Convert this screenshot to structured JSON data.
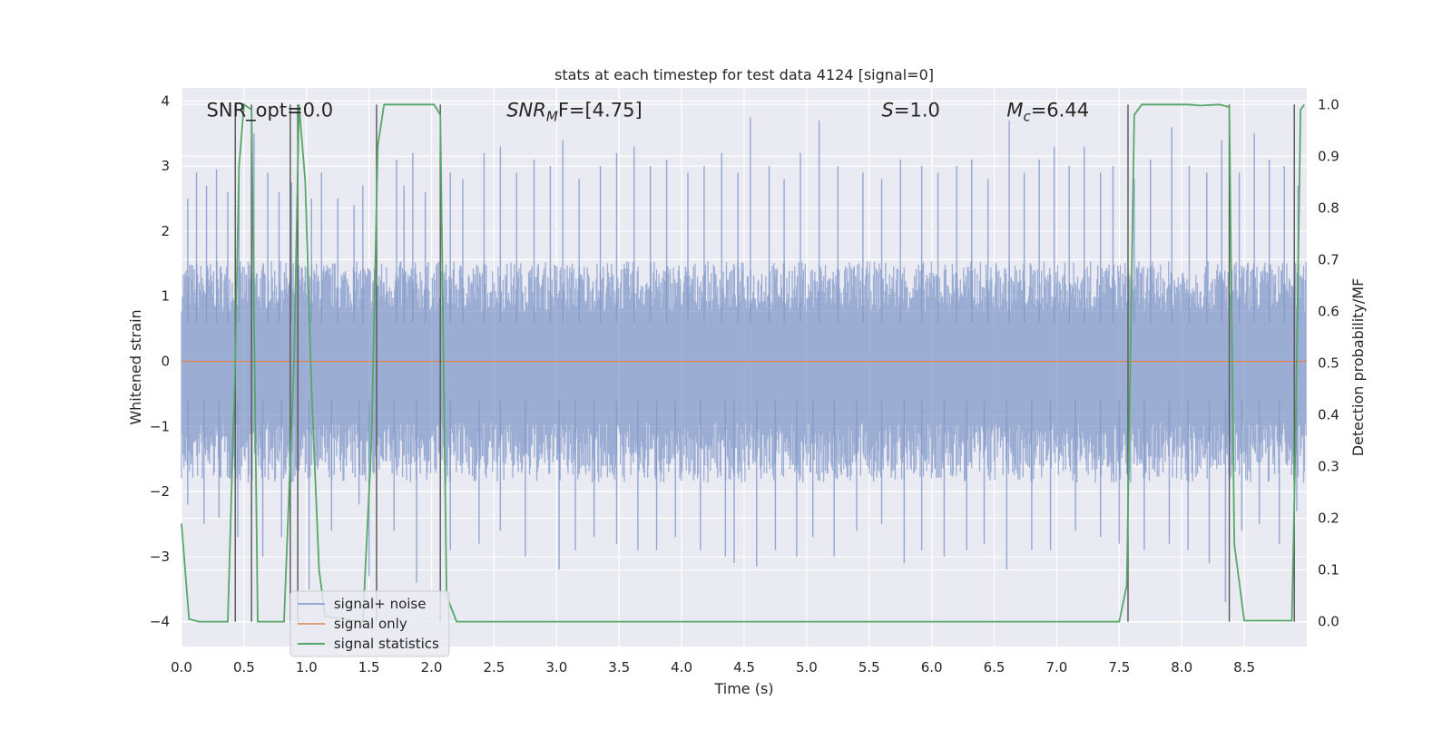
{
  "chart_data": {
    "type": "line",
    "title": "stats at each timestep for test data 4124 [signal=0]",
    "xlabel": "Time (s)",
    "ylabel_left": "Whitened strain",
    "ylabel_right": "Detection probability/MF",
    "xlim": [
      0.0,
      9.0
    ],
    "ylim_left": [
      -4.38,
      4.2
    ],
    "ylim_right": [
      -0.048,
      1.032
    ],
    "x_ticks": [
      0.0,
      0.5,
      1.0,
      1.5,
      2.0,
      2.5,
      3.0,
      3.5,
      4.0,
      4.5,
      5.0,
      5.5,
      6.0,
      6.5,
      7.0,
      7.5,
      8.0,
      8.5
    ],
    "x_tick_labels": [
      "0.0",
      "0.5",
      "1.0",
      "1.5",
      "2.0",
      "2.5",
      "3.0",
      "3.5",
      "4.0",
      "4.5",
      "5.0",
      "5.5",
      "6.0",
      "6.5",
      "7.0",
      "7.5",
      "8.0",
      "8.5"
    ],
    "y_left_ticks": [
      4,
      3,
      2,
      1,
      0,
      -1,
      -2,
      -3,
      -4
    ],
    "y_left_tick_labels": [
      "4",
      "3",
      "2",
      "1",
      "0",
      "−1",
      "−2",
      "−3",
      "−4"
    ],
    "y_right_ticks": [
      1.0,
      0.9,
      0.8,
      0.7,
      0.6,
      0.5,
      0.4,
      0.3,
      0.2,
      0.1,
      0.0
    ],
    "y_right_tick_labels": [
      "1.0",
      "0.9",
      "0.8",
      "0.7",
      "0.6",
      "0.5",
      "0.4",
      "0.3",
      "0.2",
      "0.1",
      "0.0"
    ],
    "grid": true,
    "legend_position": "lower-left",
    "colors": {
      "plot_bg": "#eaeaf2",
      "noise": "#7e96c8",
      "signal_only": "#dd8452",
      "statistics": "#55a868",
      "marker": "#555555",
      "grid": "#ffffff"
    },
    "annotations": [
      {
        "id": "snr-opt",
        "text": "SNR_opt=0.0",
        "main": "SNR_opt=0.0",
        "sub": "",
        "rest": "",
        "italic": false,
        "x": 0.2,
        "y": 3.8
      },
      {
        "id": "snr-mf",
        "text": "SNR_MF=[4.75]",
        "main": "SNR",
        "sub": "M",
        "rest": "F=[4.75]",
        "italic": true,
        "x": 2.6,
        "y": 3.8
      },
      {
        "id": "s-value",
        "text": "S=1.0",
        "main": "S",
        "sub": "",
        "rest": "=1.0",
        "italic": true,
        "x": 5.6,
        "y": 3.8
      },
      {
        "id": "mc-value",
        "text": "M_c=6.44",
        "main": "M",
        "sub": "c",
        "rest": "=6.44",
        "italic": true,
        "x": 6.6,
        "y": 3.8
      }
    ],
    "series": [
      {
        "name": "signal+ noise",
        "kind": "noise",
        "approx_envelope": {
          "typical_upper": 1.4,
          "typical_lower": -1.7,
          "peak_max": 3.75,
          "peak_min": -3.7
        },
        "spikes_up": [
          [
            0.05,
            2.5
          ],
          [
            0.12,
            2.9
          ],
          [
            0.2,
            2.7
          ],
          [
            0.28,
            2.95
          ],
          [
            0.37,
            2.6
          ],
          [
            0.46,
            2.8
          ],
          [
            0.58,
            3.5
          ],
          [
            0.69,
            2.9
          ],
          [
            0.78,
            2.6
          ],
          [
            0.88,
            2.75
          ],
          [
            1.04,
            2.5
          ],
          [
            1.12,
            2.9
          ],
          [
            1.25,
            2.5
          ],
          [
            1.38,
            2.4
          ],
          [
            1.45,
            2.7
          ],
          [
            1.72,
            3.1
          ],
          [
            1.78,
            2.7
          ],
          [
            1.85,
            3.2
          ],
          [
            1.95,
            2.6
          ],
          [
            2.15,
            2.9
          ],
          [
            2.25,
            2.8
          ],
          [
            2.42,
            3.2
          ],
          [
            2.55,
            3.3
          ],
          [
            2.68,
            2.9
          ],
          [
            2.82,
            3.1
          ],
          [
            2.95,
            3.0
          ],
          [
            3.05,
            3.4
          ],
          [
            3.18,
            2.8
          ],
          [
            3.35,
            3.0
          ],
          [
            3.48,
            3.2
          ],
          [
            3.62,
            3.3
          ],
          [
            3.75,
            3.0
          ],
          [
            3.88,
            3.1
          ],
          [
            4.05,
            2.9
          ],
          [
            4.18,
            3.0
          ],
          [
            4.32,
            3.2
          ],
          [
            4.45,
            2.9
          ],
          [
            4.55,
            3.75
          ],
          [
            4.7,
            3.0
          ],
          [
            4.82,
            2.8
          ],
          [
            4.95,
            3.2
          ],
          [
            5.1,
            3.7
          ],
          [
            5.25,
            3.0
          ],
          [
            5.45,
            2.9
          ],
          [
            5.6,
            2.8
          ],
          [
            5.75,
            3.1
          ],
          [
            5.92,
            3.0
          ],
          [
            6.05,
            2.9
          ],
          [
            6.2,
            3.0
          ],
          [
            6.32,
            3.1
          ],
          [
            6.45,
            2.8
          ],
          [
            6.62,
            3.7
          ],
          [
            6.74,
            2.9
          ],
          [
            6.86,
            3.1
          ],
          [
            6.98,
            3.3
          ],
          [
            7.1,
            3.0
          ],
          [
            7.22,
            3.3
          ],
          [
            7.35,
            2.9
          ],
          [
            7.45,
            3.0
          ],
          [
            7.62,
            2.8
          ],
          [
            7.75,
            3.1
          ],
          [
            7.92,
            3.6
          ],
          [
            8.06,
            3.0
          ],
          [
            8.2,
            2.9
          ],
          [
            8.32,
            3.4
          ],
          [
            8.46,
            2.9
          ],
          [
            8.58,
            3.5
          ],
          [
            8.7,
            3.1
          ],
          [
            8.82,
            3.0
          ],
          [
            8.93,
            2.7
          ]
        ],
        "spikes_down": [
          [
            0.05,
            -2.2
          ],
          [
            0.18,
            -2.5
          ],
          [
            0.3,
            -2.4
          ],
          [
            0.45,
            -2.7
          ],
          [
            0.65,
            -3.0
          ],
          [
            0.8,
            -2.7
          ],
          [
            1.02,
            -3.5
          ],
          [
            1.2,
            -2.6
          ],
          [
            1.42,
            -2.2
          ],
          [
            1.5,
            -3.3
          ],
          [
            1.7,
            -2.6
          ],
          [
            1.88,
            -3.4
          ],
          [
            2.15,
            -2.9
          ],
          [
            2.38,
            -2.8
          ],
          [
            2.55,
            -2.6
          ],
          [
            2.75,
            -3.0
          ],
          [
            3.02,
            -3.2
          ],
          [
            3.15,
            -2.9
          ],
          [
            3.3,
            -2.7
          ],
          [
            3.48,
            -2.8
          ],
          [
            3.65,
            -2.9
          ],
          [
            3.8,
            -2.9
          ],
          [
            3.95,
            -2.7
          ],
          [
            4.15,
            -2.9
          ],
          [
            4.35,
            -3.0
          ],
          [
            4.42,
            -3.1
          ],
          [
            4.6,
            -3.15
          ],
          [
            4.75,
            -2.9
          ],
          [
            4.92,
            -3.0
          ],
          [
            5.05,
            -2.7
          ],
          [
            5.22,
            -3.0
          ],
          [
            5.4,
            -2.6
          ],
          [
            5.6,
            -2.5
          ],
          [
            5.78,
            -3.1
          ],
          [
            5.92,
            -2.9
          ],
          [
            6.1,
            -3.0
          ],
          [
            6.28,
            -2.9
          ],
          [
            6.42,
            -2.8
          ],
          [
            6.6,
            -3.2
          ],
          [
            6.8,
            -2.9
          ],
          [
            6.95,
            -2.9
          ],
          [
            7.15,
            -2.6
          ],
          [
            7.35,
            -2.7
          ],
          [
            7.5,
            -2.8
          ],
          [
            7.7,
            -2.9
          ],
          [
            7.9,
            -2.8
          ],
          [
            8.05,
            -2.9
          ],
          [
            8.22,
            -3.1
          ],
          [
            8.35,
            -3.7
          ],
          [
            8.48,
            -2.6
          ],
          [
            8.62,
            -2.5
          ],
          [
            8.78,
            -2.8
          ],
          [
            8.92,
            -2.3
          ]
        ]
      },
      {
        "name": "signal only",
        "kind": "constant",
        "points": [
          [
            0.0,
            0.0
          ],
          [
            9.0,
            0.0
          ]
        ]
      },
      {
        "name": "signal statistics",
        "kind": "step",
        "axis": "right",
        "points": [
          [
            0.0,
            0.19
          ],
          [
            0.06,
            0.005
          ],
          [
            0.14,
            0.0
          ],
          [
            0.37,
            0.0
          ],
          [
            0.43,
            0.5
          ],
          [
            0.46,
            0.88
          ],
          [
            0.5,
            1.0
          ],
          [
            0.56,
            0.99
          ],
          [
            0.61,
            0.0
          ],
          [
            0.82,
            0.0
          ],
          [
            0.9,
            0.5
          ],
          [
            0.94,
            1.0
          ],
          [
            0.99,
            0.85
          ],
          [
            1.04,
            0.45
          ],
          [
            1.1,
            0.1
          ],
          [
            1.15,
            0.01
          ],
          [
            1.45,
            0.0
          ],
          [
            1.52,
            0.35
          ],
          [
            1.57,
            0.92
          ],
          [
            1.62,
            1.0
          ],
          [
            2.02,
            1.0
          ],
          [
            2.07,
            0.98
          ],
          [
            2.12,
            0.05
          ],
          [
            2.2,
            0.0
          ],
          [
            7.5,
            0.0
          ],
          [
            7.56,
            0.07
          ],
          [
            7.62,
            0.98
          ],
          [
            7.68,
            1.0
          ],
          [
            8.05,
            1.0
          ],
          [
            8.15,
            0.998
          ],
          [
            8.3,
            1.0
          ],
          [
            8.38,
            0.995
          ],
          [
            8.42,
            0.15
          ],
          [
            8.5,
            0.002
          ],
          [
            8.88,
            0.002
          ],
          [
            8.91,
            0.35
          ],
          [
            8.95,
            0.99
          ],
          [
            8.98,
            1.0
          ]
        ]
      }
    ],
    "event_markers_x": [
      0.43,
      0.56,
      0.87,
      0.93,
      1.56,
      2.07,
      7.57,
      8.38,
      8.9
    ]
  }
}
